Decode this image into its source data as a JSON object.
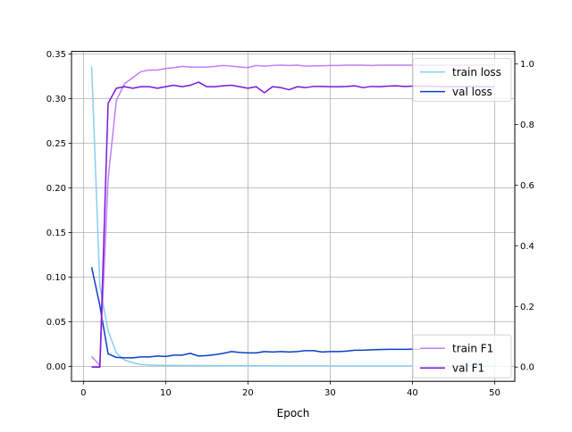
{
  "chart_data": {
    "type": "line",
    "title": "",
    "xlabel": "Epoch",
    "ylabel_left": "",
    "ylabel_right": "",
    "xlim": [
      -1.45,
      52.45
    ],
    "ylim_left": [
      -0.0168,
      0.3528
    ],
    "ylim_right": [
      -0.047,
      1.0415
    ],
    "x_ticks": [
      0,
      10,
      20,
      30,
      40,
      50
    ],
    "y_left_ticks": [
      0.0,
      0.05,
      0.1,
      0.15,
      0.2,
      0.25,
      0.3,
      0.35
    ],
    "y_left_tick_labels": [
      "0.00",
      "0.05",
      "0.10",
      "0.15",
      "0.20",
      "0.25",
      "0.30",
      "0.35"
    ],
    "y_right_ticks": [
      0.0,
      0.2,
      0.4,
      0.6,
      0.8,
      1.0
    ],
    "y_right_tick_labels": [
      "0.0",
      "0.2",
      "0.4",
      "0.6",
      "0.8",
      "1.0"
    ],
    "grid": true,
    "legends": [
      {
        "placement": "top-right",
        "entries": [
          "train loss",
          "val loss"
        ]
      },
      {
        "placement": "bottom-right",
        "entries": [
          "train F1",
          "val F1"
        ]
      }
    ],
    "series": [
      {
        "name": "train loss",
        "axis": "left",
        "color": "#89cff0",
        "x": [
          1,
          2,
          3,
          4,
          5,
          6,
          7,
          8,
          9,
          10,
          11,
          12,
          13,
          14,
          15,
          16,
          17,
          18,
          19,
          20,
          21,
          22,
          23,
          24,
          25,
          26,
          27,
          28,
          29,
          30,
          31,
          32,
          33,
          34,
          35,
          36,
          37,
          38,
          39,
          40,
          41,
          42,
          43,
          44,
          45,
          46,
          47,
          48,
          49,
          50
        ],
        "y": [
          0.336,
          0.09,
          0.04,
          0.015,
          0.007,
          0.004,
          0.002,
          0.0015,
          0.0012,
          0.001,
          0.001,
          0.001,
          0.0009,
          0.0009,
          0.0008,
          0.0008,
          0.0007,
          0.0007,
          0.0007,
          0.0006,
          0.0006,
          0.0006,
          0.0006,
          0.0005,
          0.0005,
          0.0005,
          0.0005,
          0.0005,
          0.0005,
          0.0005,
          0.0004,
          0.0004,
          0.0004,
          0.0004,
          0.0004,
          0.0004,
          0.0004,
          0.0004,
          0.0004,
          0.0004,
          0.0004,
          0.0004,
          0.0004,
          0.0004,
          0.0004,
          0.0004,
          0.0004,
          0.0004,
          0.0004,
          0.0004
        ]
      },
      {
        "name": "val loss",
        "axis": "left",
        "color": "#0b3fc7",
        "x": [
          1,
          2,
          3,
          4,
          5,
          6,
          7,
          8,
          9,
          10,
          11,
          12,
          13,
          14,
          15,
          16,
          17,
          18,
          19,
          20,
          21,
          22,
          23,
          24,
          25,
          26,
          27,
          28,
          29,
          30,
          31,
          32,
          33,
          34,
          35,
          36,
          37,
          38,
          39,
          40,
          41
        ],
        "y": [
          0.111,
          0.068,
          0.014,
          0.01,
          0.0095,
          0.0095,
          0.0105,
          0.0105,
          0.0115,
          0.011,
          0.0125,
          0.0125,
          0.0145,
          0.0115,
          0.012,
          0.013,
          0.0145,
          0.0165,
          0.0155,
          0.015,
          0.015,
          0.0165,
          0.016,
          0.0165,
          0.016,
          0.0165,
          0.0175,
          0.0175,
          0.016,
          0.0165,
          0.0165,
          0.017,
          0.018,
          0.018,
          0.0185,
          0.0188,
          0.019,
          0.019,
          0.019,
          0.0192,
          0.0192
        ]
      },
      {
        "name": "train F1",
        "axis": "right",
        "color": "#bf7ff5",
        "x": [
          1,
          2,
          3,
          4,
          5,
          6,
          7,
          8,
          9,
          10,
          11,
          12,
          13,
          14,
          15,
          16,
          17,
          18,
          19,
          20,
          21,
          22,
          23,
          24,
          25,
          26,
          27,
          28,
          29,
          30,
          31,
          32,
          33,
          34,
          35,
          36,
          37,
          38,
          39,
          40,
          41,
          42,
          43,
          44,
          45,
          46,
          47,
          48,
          49,
          50
        ],
        "y": [
          0.035,
          0.005,
          0.62,
          0.88,
          0.935,
          0.955,
          0.975,
          0.98,
          0.98,
          0.985,
          0.988,
          0.992,
          0.99,
          0.99,
          0.99,
          0.992,
          0.995,
          0.993,
          0.99,
          0.988,
          0.995,
          0.993,
          0.995,
          0.996,
          0.995,
          0.996,
          0.993,
          0.994,
          0.994,
          0.995,
          0.995,
          0.996,
          0.996,
          0.996,
          0.995,
          0.996,
          0.996,
          0.996,
          0.996,
          0.996,
          0.996,
          0.996,
          0.996,
          0.996,
          0.996,
          0.996,
          0.996,
          0.996,
          0.996,
          0.996
        ]
      },
      {
        "name": "val F1",
        "axis": "right",
        "color": "#7a16d9",
        "x": [
          1,
          2,
          3,
          4,
          5,
          6,
          7,
          8,
          9,
          10,
          11,
          12,
          13,
          14,
          15,
          16,
          17,
          18,
          19,
          20,
          21,
          22,
          23,
          24,
          25,
          26,
          27,
          28,
          29,
          30,
          31,
          32,
          33,
          34,
          35,
          36,
          37,
          38,
          39,
          40,
          41,
          42,
          43,
          44,
          45,
          46,
          47,
          48,
          49,
          50
        ],
        "y": [
          0.0,
          0.0,
          0.87,
          0.92,
          0.925,
          0.92,
          0.925,
          0.925,
          0.92,
          0.925,
          0.93,
          0.925,
          0.93,
          0.94,
          0.925,
          0.925,
          0.928,
          0.93,
          0.925,
          0.92,
          0.925,
          0.905,
          0.925,
          0.922,
          0.915,
          0.925,
          0.922,
          0.926,
          0.926,
          0.925,
          0.925,
          0.926,
          0.928,
          0.922,
          0.926,
          0.925,
          0.927,
          0.928,
          0.926,
          0.927,
          0.927,
          0.927,
          0.926,
          0.925,
          0.925,
          0.925,
          0.925,
          0.925,
          0.925,
          0.925
        ]
      }
    ]
  }
}
